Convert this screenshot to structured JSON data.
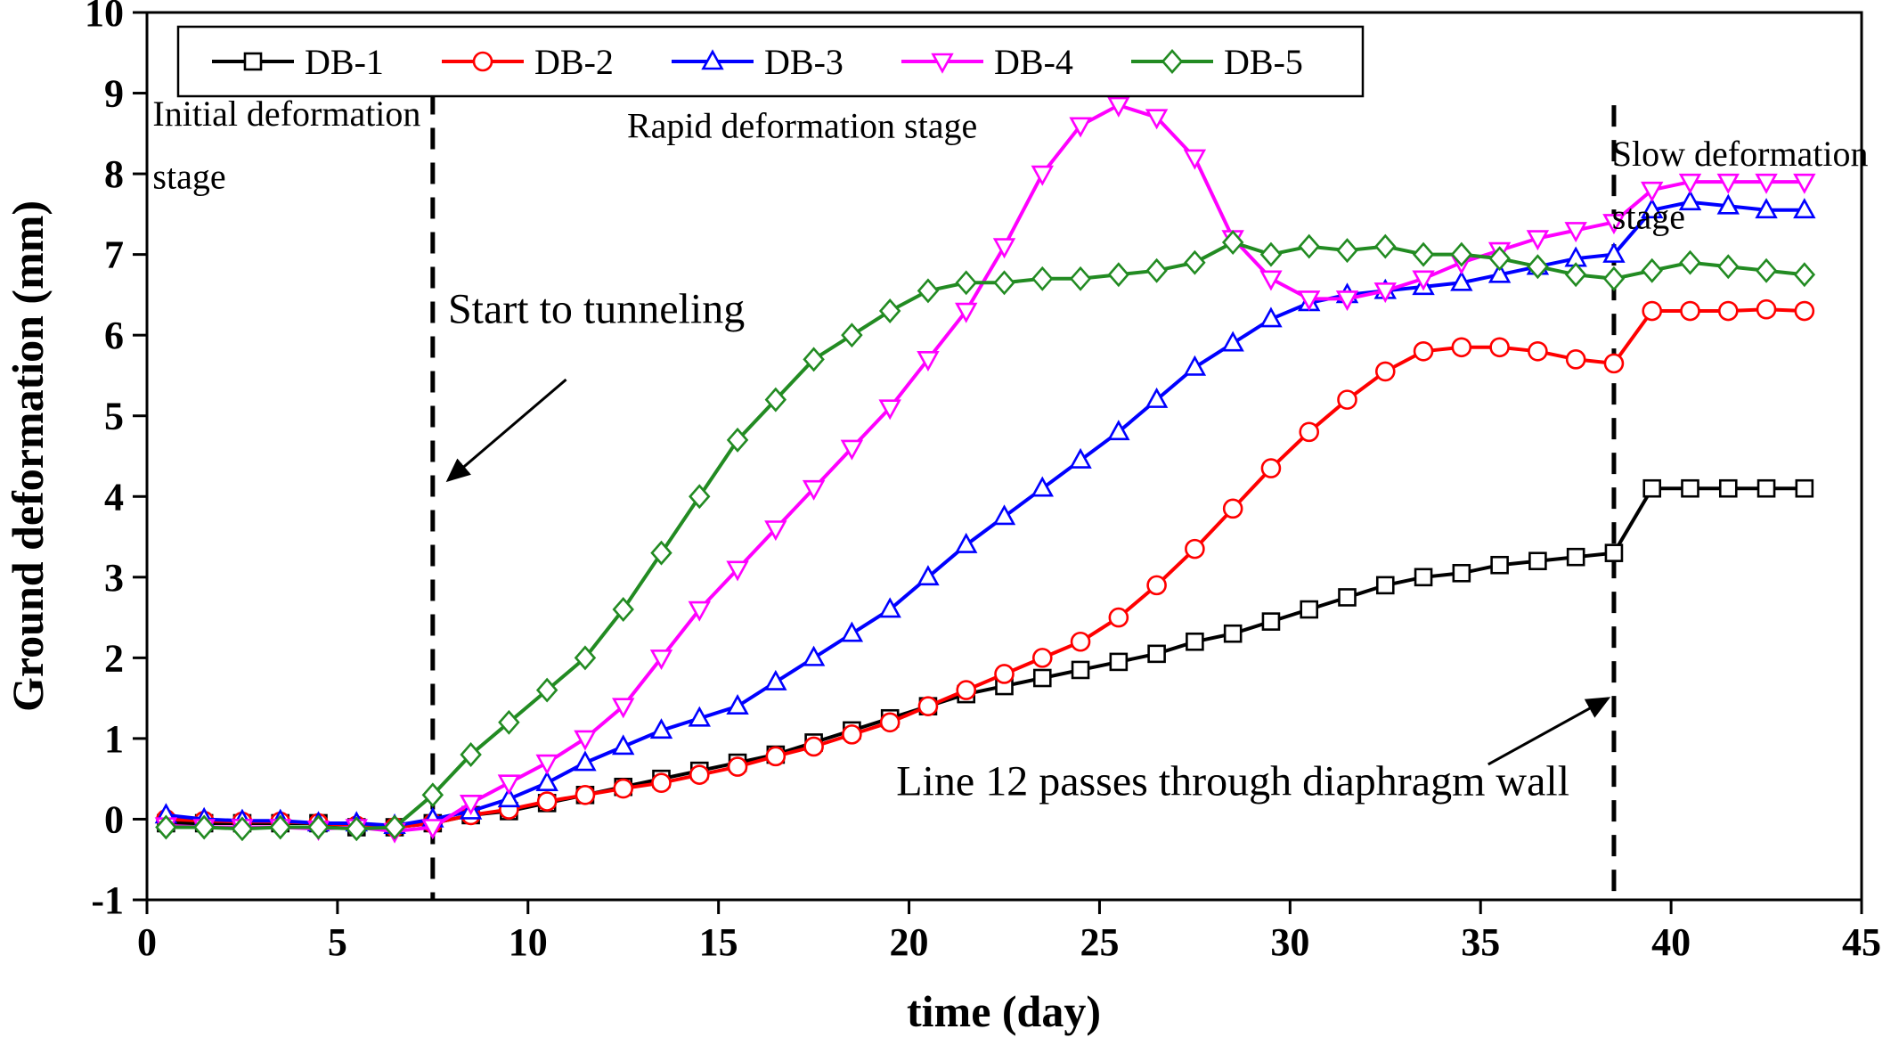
{
  "chart_data": {
    "type": "line",
    "title": "",
    "xlabel": "time (day)",
    "ylabel": "Ground deformation (mm)",
    "xlim": [
      0,
      45
    ],
    "ylim": [
      -1,
      10
    ],
    "xticks": [
      0,
      5,
      10,
      15,
      20,
      25,
      30,
      35,
      40,
      45
    ],
    "yticks": [
      -1,
      0,
      1,
      2,
      3,
      4,
      5,
      6,
      7,
      8,
      9,
      10
    ],
    "legend_position": "top-inside",
    "grid": false,
    "x": [
      0.5,
      1.5,
      2.5,
      3.5,
      4.5,
      5.5,
      6.5,
      7.5,
      8.5,
      9.5,
      10.5,
      11.5,
      12.5,
      13.5,
      14.5,
      15.5,
      16.5,
      17.5,
      18.5,
      19.5,
      20.5,
      21.5,
      22.5,
      23.5,
      24.5,
      25.5,
      26.5,
      27.5,
      28.5,
      29.5,
      30.5,
      31.5,
      32.5,
      33.5,
      34.5,
      35.5,
      36.5,
      37.5,
      38.5,
      39.5,
      40.5,
      41.5,
      42.5,
      43.5
    ],
    "series": [
      {
        "name": "DB-1",
        "color": "#000000",
        "marker": "square",
        "values": [
          -0.05,
          -0.05,
          -0.05,
          -0.05,
          -0.05,
          -0.1,
          -0.1,
          -0.05,
          0.05,
          0.1,
          0.2,
          0.3,
          0.4,
          0.5,
          0.6,
          0.7,
          0.8,
          0.95,
          1.1,
          1.25,
          1.4,
          1.55,
          1.65,
          1.75,
          1.85,
          1.95,
          2.05,
          2.2,
          2.3,
          2.45,
          2.6,
          2.75,
          2.9,
          3.0,
          3.05,
          3.15,
          3.2,
          3.25,
          3.3,
          4.1,
          4.1,
          4.1,
          4.1,
          4.1
        ]
      },
      {
        "name": "DB-2",
        "color": "#ff0000",
        "marker": "circle",
        "values": [
          0.0,
          -0.02,
          -0.03,
          -0.03,
          -0.05,
          -0.08,
          -0.1,
          -0.05,
          0.05,
          0.12,
          0.22,
          0.3,
          0.38,
          0.45,
          0.55,
          0.65,
          0.78,
          0.9,
          1.05,
          1.2,
          1.4,
          1.6,
          1.8,
          2.0,
          2.2,
          2.5,
          2.9,
          3.35,
          3.85,
          4.35,
          4.8,
          5.2,
          5.55,
          5.8,
          5.85,
          5.85,
          5.8,
          5.7,
          5.65,
          6.3,
          6.3,
          6.3,
          6.32,
          6.3
        ]
      },
      {
        "name": "DB-3",
        "color": "#0000ff",
        "marker": "triangle-up",
        "values": [
          0.05,
          0.0,
          -0.02,
          -0.02,
          -0.05,
          -0.05,
          -0.08,
          0.0,
          0.1,
          0.25,
          0.45,
          0.7,
          0.9,
          1.1,
          1.25,
          1.4,
          1.7,
          2.0,
          2.3,
          2.6,
          3.0,
          3.4,
          3.75,
          4.1,
          4.45,
          4.8,
          5.2,
          5.6,
          5.9,
          6.2,
          6.4,
          6.5,
          6.55,
          6.6,
          6.65,
          6.75,
          6.85,
          6.95,
          7.0,
          7.55,
          7.65,
          7.6,
          7.55,
          7.55
        ]
      },
      {
        "name": "DB-4",
        "color": "#ff00ff",
        "marker": "triangle-down",
        "values": [
          -0.08,
          -0.1,
          -0.1,
          -0.1,
          -0.12,
          -0.1,
          -0.15,
          -0.1,
          0.2,
          0.45,
          0.7,
          1.0,
          1.4,
          2.0,
          2.6,
          3.1,
          3.6,
          4.1,
          4.6,
          5.1,
          5.7,
          6.3,
          7.1,
          8.0,
          8.6,
          8.85,
          8.7,
          8.2,
          7.2,
          6.7,
          6.45,
          6.45,
          6.55,
          6.7,
          6.9,
          7.05,
          7.2,
          7.3,
          7.4,
          7.8,
          7.9,
          7.9,
          7.9,
          7.9
        ]
      },
      {
        "name": "DB-5",
        "color": "#228B22",
        "marker": "diamond",
        "values": [
          -0.1,
          -0.1,
          -0.12,
          -0.1,
          -0.1,
          -0.12,
          -0.1,
          0.3,
          0.8,
          1.2,
          1.6,
          2.0,
          2.6,
          3.3,
          4.0,
          4.7,
          5.2,
          5.7,
          6.0,
          6.3,
          6.55,
          6.65,
          6.65,
          6.7,
          6.7,
          6.75,
          6.8,
          6.9,
          7.15,
          7.0,
          7.1,
          7.05,
          7.1,
          7.0,
          7.0,
          6.95,
          6.85,
          6.75,
          6.7,
          6.8,
          6.9,
          6.85,
          6.8,
          6.75
        ]
      }
    ],
    "vlines": [
      {
        "label": "start-to-tunneling-line",
        "x": 7.5,
        "y_top": 9.0,
        "y_bottom": -1
      },
      {
        "label": "line12-passes-line",
        "x": 38.5,
        "y_top": 8.85,
        "y_bottom": -1
      }
    ],
    "annotations": [
      {
        "lines": [
          "Initial deformation",
          "stage"
        ],
        "x": 0.15,
        "y": 8.6,
        "dy": 0.78,
        "color": "#ff0000",
        "size": 40,
        "anchor": "start"
      },
      {
        "lines": [
          "Rapid deformation stage"
        ],
        "x": 12.6,
        "y": 8.45,
        "dy": 0,
        "color": "#ff0000",
        "size": 40,
        "anchor": "start"
      },
      {
        "lines": [
          "Slow deformation",
          "stage"
        ],
        "x": 38.45,
        "y": 8.1,
        "dy": 0.78,
        "color": "#ff0000",
        "size": 40,
        "anchor": "start"
      },
      {
        "lines": [
          "Start to tunneling"
        ],
        "x": 7.9,
        "y": 6.15,
        "dy": 0,
        "color": "#000000",
        "size": 48,
        "anchor": "start"
      },
      {
        "lines": [
          "Line 12 passes through diaphragm wall"
        ],
        "x": 28.5,
        "y": 0.3,
        "dy": 0,
        "color": "#000000",
        "size": 48,
        "anchor": "middle"
      }
    ],
    "arrows": [
      {
        "from": [
          11.0,
          5.45
        ],
        "to": [
          7.9,
          4.2
        ]
      },
      {
        "from": [
          35.2,
          0.68
        ],
        "to": [
          38.35,
          1.5
        ]
      }
    ]
  }
}
